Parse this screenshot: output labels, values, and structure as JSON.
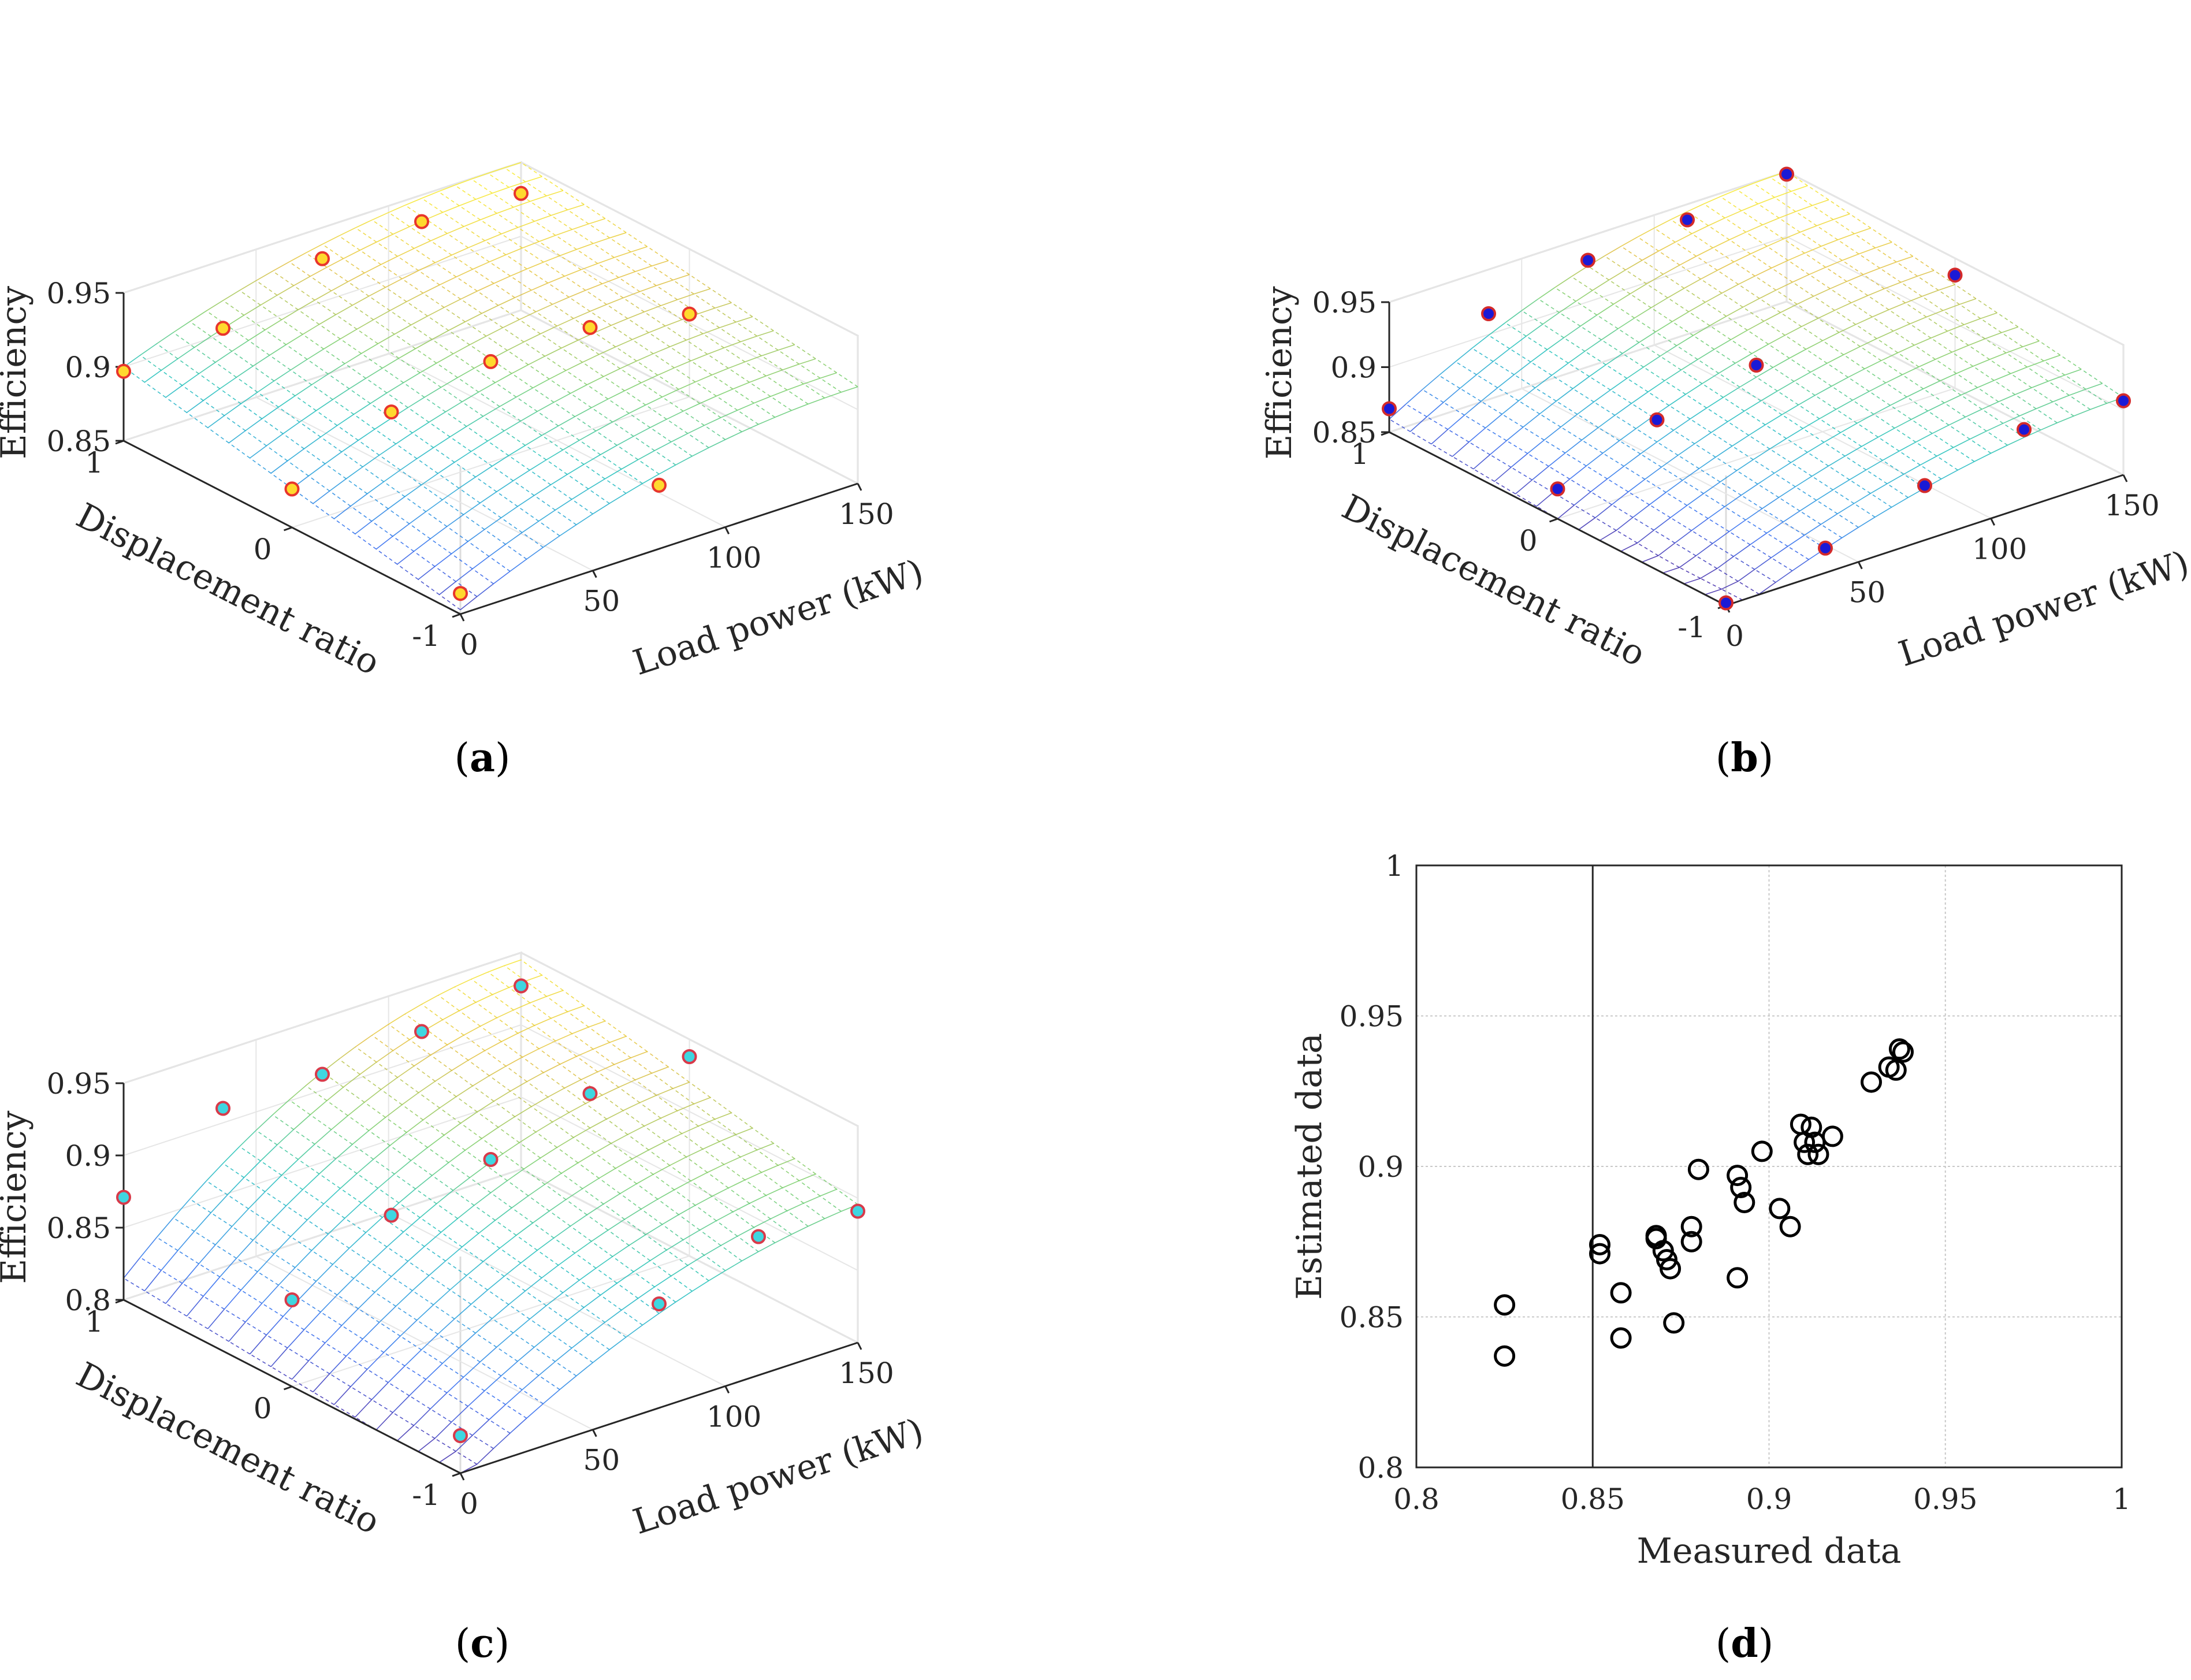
{
  "captions": {
    "a": "a",
    "b": "b",
    "c": "c",
    "d": "d"
  },
  "chart_data": [
    {
      "id": "a",
      "type": "surface3d",
      "xlabel": "Load power (kW)",
      "ylabel": "Displacement ratio",
      "zlabel": "Efficiency",
      "xlim": [
        0,
        150
      ],
      "ylim": [
        -1,
        1
      ],
      "zlim": [
        0.85,
        0.95
      ],
      "xticks": [
        "0",
        "50",
        "100",
        "150"
      ],
      "yticks": [
        "-1",
        "0",
        "1"
      ],
      "zticks": [
        "0.85",
        "0.9",
        "0.95"
      ],
      "marker": {
        "fill": "#ffd92e",
        "edge": "#e8352c"
      },
      "points": [
        {
          "x": 0,
          "y": -1,
          "z": 0.864
        },
        {
          "x": 75,
          "y": -1,
          "z": 0.893
        },
        {
          "x": 0,
          "y": 0,
          "z": 0.876
        },
        {
          "x": 75,
          "y": 0,
          "z": 0.918
        },
        {
          "x": 150,
          "y": 0,
          "z": 0.906
        },
        {
          "x": 0,
          "y": 1,
          "z": 0.897
        },
        {
          "x": 75,
          "y": 1,
          "z": 0.929
        },
        {
          "x": 150,
          "y": 1,
          "z": 0.929
        },
        {
          "x": 37.5,
          "y": 1,
          "z": 0.904
        },
        {
          "x": 112.5,
          "y": 1,
          "z": 0.932
        },
        {
          "x": 37.5,
          "y": 0,
          "z": 0.906
        },
        {
          "x": 112.5,
          "y": 0,
          "z": 0.919
        }
      ]
    },
    {
      "id": "b",
      "type": "surface3d",
      "xlabel": "Load power (kW)",
      "ylabel": "Displacement ratio",
      "zlabel": "Efficiency",
      "xlim": [
        0,
        150
      ],
      "ylim": [
        -1,
        1
      ],
      "zlim": [
        0.85,
        0.95
      ],
      "xticks": [
        "0",
        "50",
        "100",
        "150"
      ],
      "yticks": [
        "-1",
        "0",
        "1"
      ],
      "zticks": [
        "0.85",
        "0.9",
        "0.95"
      ],
      "marker": {
        "fill": "#1a1ad6",
        "edge": "#d42a2a"
      },
      "points": [
        {
          "x": 0,
          "y": -1,
          "z": 0.852
        },
        {
          "x": 37.5,
          "y": -1,
          "z": 0.869
        },
        {
          "x": 75,
          "y": -1,
          "z": 0.892
        },
        {
          "x": 150,
          "y": -1,
          "z": 0.907
        },
        {
          "x": 0,
          "y": 0,
          "z": 0.873
        },
        {
          "x": 75,
          "y": 0,
          "z": 0.918
        },
        {
          "x": 150,
          "y": 0,
          "z": 0.937
        },
        {
          "x": 0,
          "y": 1,
          "z": 0.868
        },
        {
          "x": 37.5,
          "y": 1,
          "z": 0.916
        },
        {
          "x": 75,
          "y": 1,
          "z": 0.932
        },
        {
          "x": 112.5,
          "y": 1,
          "z": 0.938
        },
        {
          "x": 150,
          "y": 1,
          "z": 0.948
        },
        {
          "x": 112.5,
          "y": -1,
          "z": 0.91
        },
        {
          "x": 37.5,
          "y": 0,
          "z": 0.901
        }
      ]
    },
    {
      "id": "c",
      "type": "surface3d",
      "xlabel": "Load power (kW)",
      "ylabel": "Displacement ratio",
      "zlabel": "Efficiency",
      "xlim": [
        0,
        150
      ],
      "ylim": [
        -1,
        1
      ],
      "zlim": [
        0.8,
        0.95
      ],
      "xticks": [
        "0",
        "50",
        "100",
        "150"
      ],
      "yticks": [
        "-1",
        "0",
        "1"
      ],
      "zticks": [
        "0.8",
        "0.85",
        "0.9",
        "0.95"
      ],
      "marker": {
        "fill": "#3fd6e0",
        "edge": "#d83a4a"
      },
      "points": [
        {
          "x": 0,
          "y": -1,
          "z": 0.826
        },
        {
          "x": 75,
          "y": -1,
          "z": 0.872
        },
        {
          "x": 150,
          "y": -1,
          "z": 0.891
        },
        {
          "x": 0,
          "y": 0,
          "z": 0.86
        },
        {
          "x": 75,
          "y": 0,
          "z": 0.912
        },
        {
          "x": 150,
          "y": 0,
          "z": 0.938
        },
        {
          "x": 0,
          "y": 1,
          "z": 0.871
        },
        {
          "x": 75,
          "y": 1,
          "z": 0.911
        },
        {
          "x": 150,
          "y": 1,
          "z": 0.927
        },
        {
          "x": 37.5,
          "y": 1,
          "z": 0.91
        },
        {
          "x": 112.5,
          "y": 1,
          "z": 0.918
        },
        {
          "x": 37.5,
          "y": 0,
          "z": 0.896
        },
        {
          "x": 112.5,
          "y": 0,
          "z": 0.935
        },
        {
          "x": 112.5,
          "y": -1,
          "z": 0.896
        }
      ]
    },
    {
      "id": "d",
      "type": "scatter",
      "xlabel": "Measured data",
      "ylabel": "Estimated data",
      "xlim": [
        0.8,
        1
      ],
      "ylim": [
        0.8,
        1
      ],
      "xticks": [
        "0.8",
        "0.85",
        "0.9",
        "0.95",
        "1"
      ],
      "yticks": [
        "0.8",
        "0.85",
        "0.9",
        "0.95",
        "1"
      ],
      "grid": true,
      "points": [
        [
          0.825,
          0.854
        ],
        [
          0.825,
          0.837
        ],
        [
          0.852,
          0.874
        ],
        [
          0.852,
          0.871
        ],
        [
          0.858,
          0.858
        ],
        [
          0.858,
          0.843
        ],
        [
          0.868,
          0.877
        ],
        [
          0.868,
          0.876
        ],
        [
          0.87,
          0.872
        ],
        [
          0.871,
          0.869
        ],
        [
          0.872,
          0.866
        ],
        [
          0.873,
          0.848
        ],
        [
          0.878,
          0.88
        ],
        [
          0.878,
          0.875
        ],
        [
          0.88,
          0.899
        ],
        [
          0.891,
          0.897
        ],
        [
          0.892,
          0.893
        ],
        [
          0.893,
          0.888
        ],
        [
          0.891,
          0.863
        ],
        [
          0.898,
          0.905
        ],
        [
          0.903,
          0.886
        ],
        [
          0.906,
          0.88
        ],
        [
          0.909,
          0.914
        ],
        [
          0.91,
          0.908
        ],
        [
          0.911,
          0.904
        ],
        [
          0.912,
          0.913
        ],
        [
          0.913,
          0.908
        ],
        [
          0.914,
          0.904
        ],
        [
          0.918,
          0.91
        ],
        [
          0.929,
          0.928
        ],
        [
          0.934,
          0.933
        ],
        [
          0.936,
          0.932
        ],
        [
          0.937,
          0.939
        ],
        [
          0.938,
          0.938
        ]
      ]
    }
  ]
}
